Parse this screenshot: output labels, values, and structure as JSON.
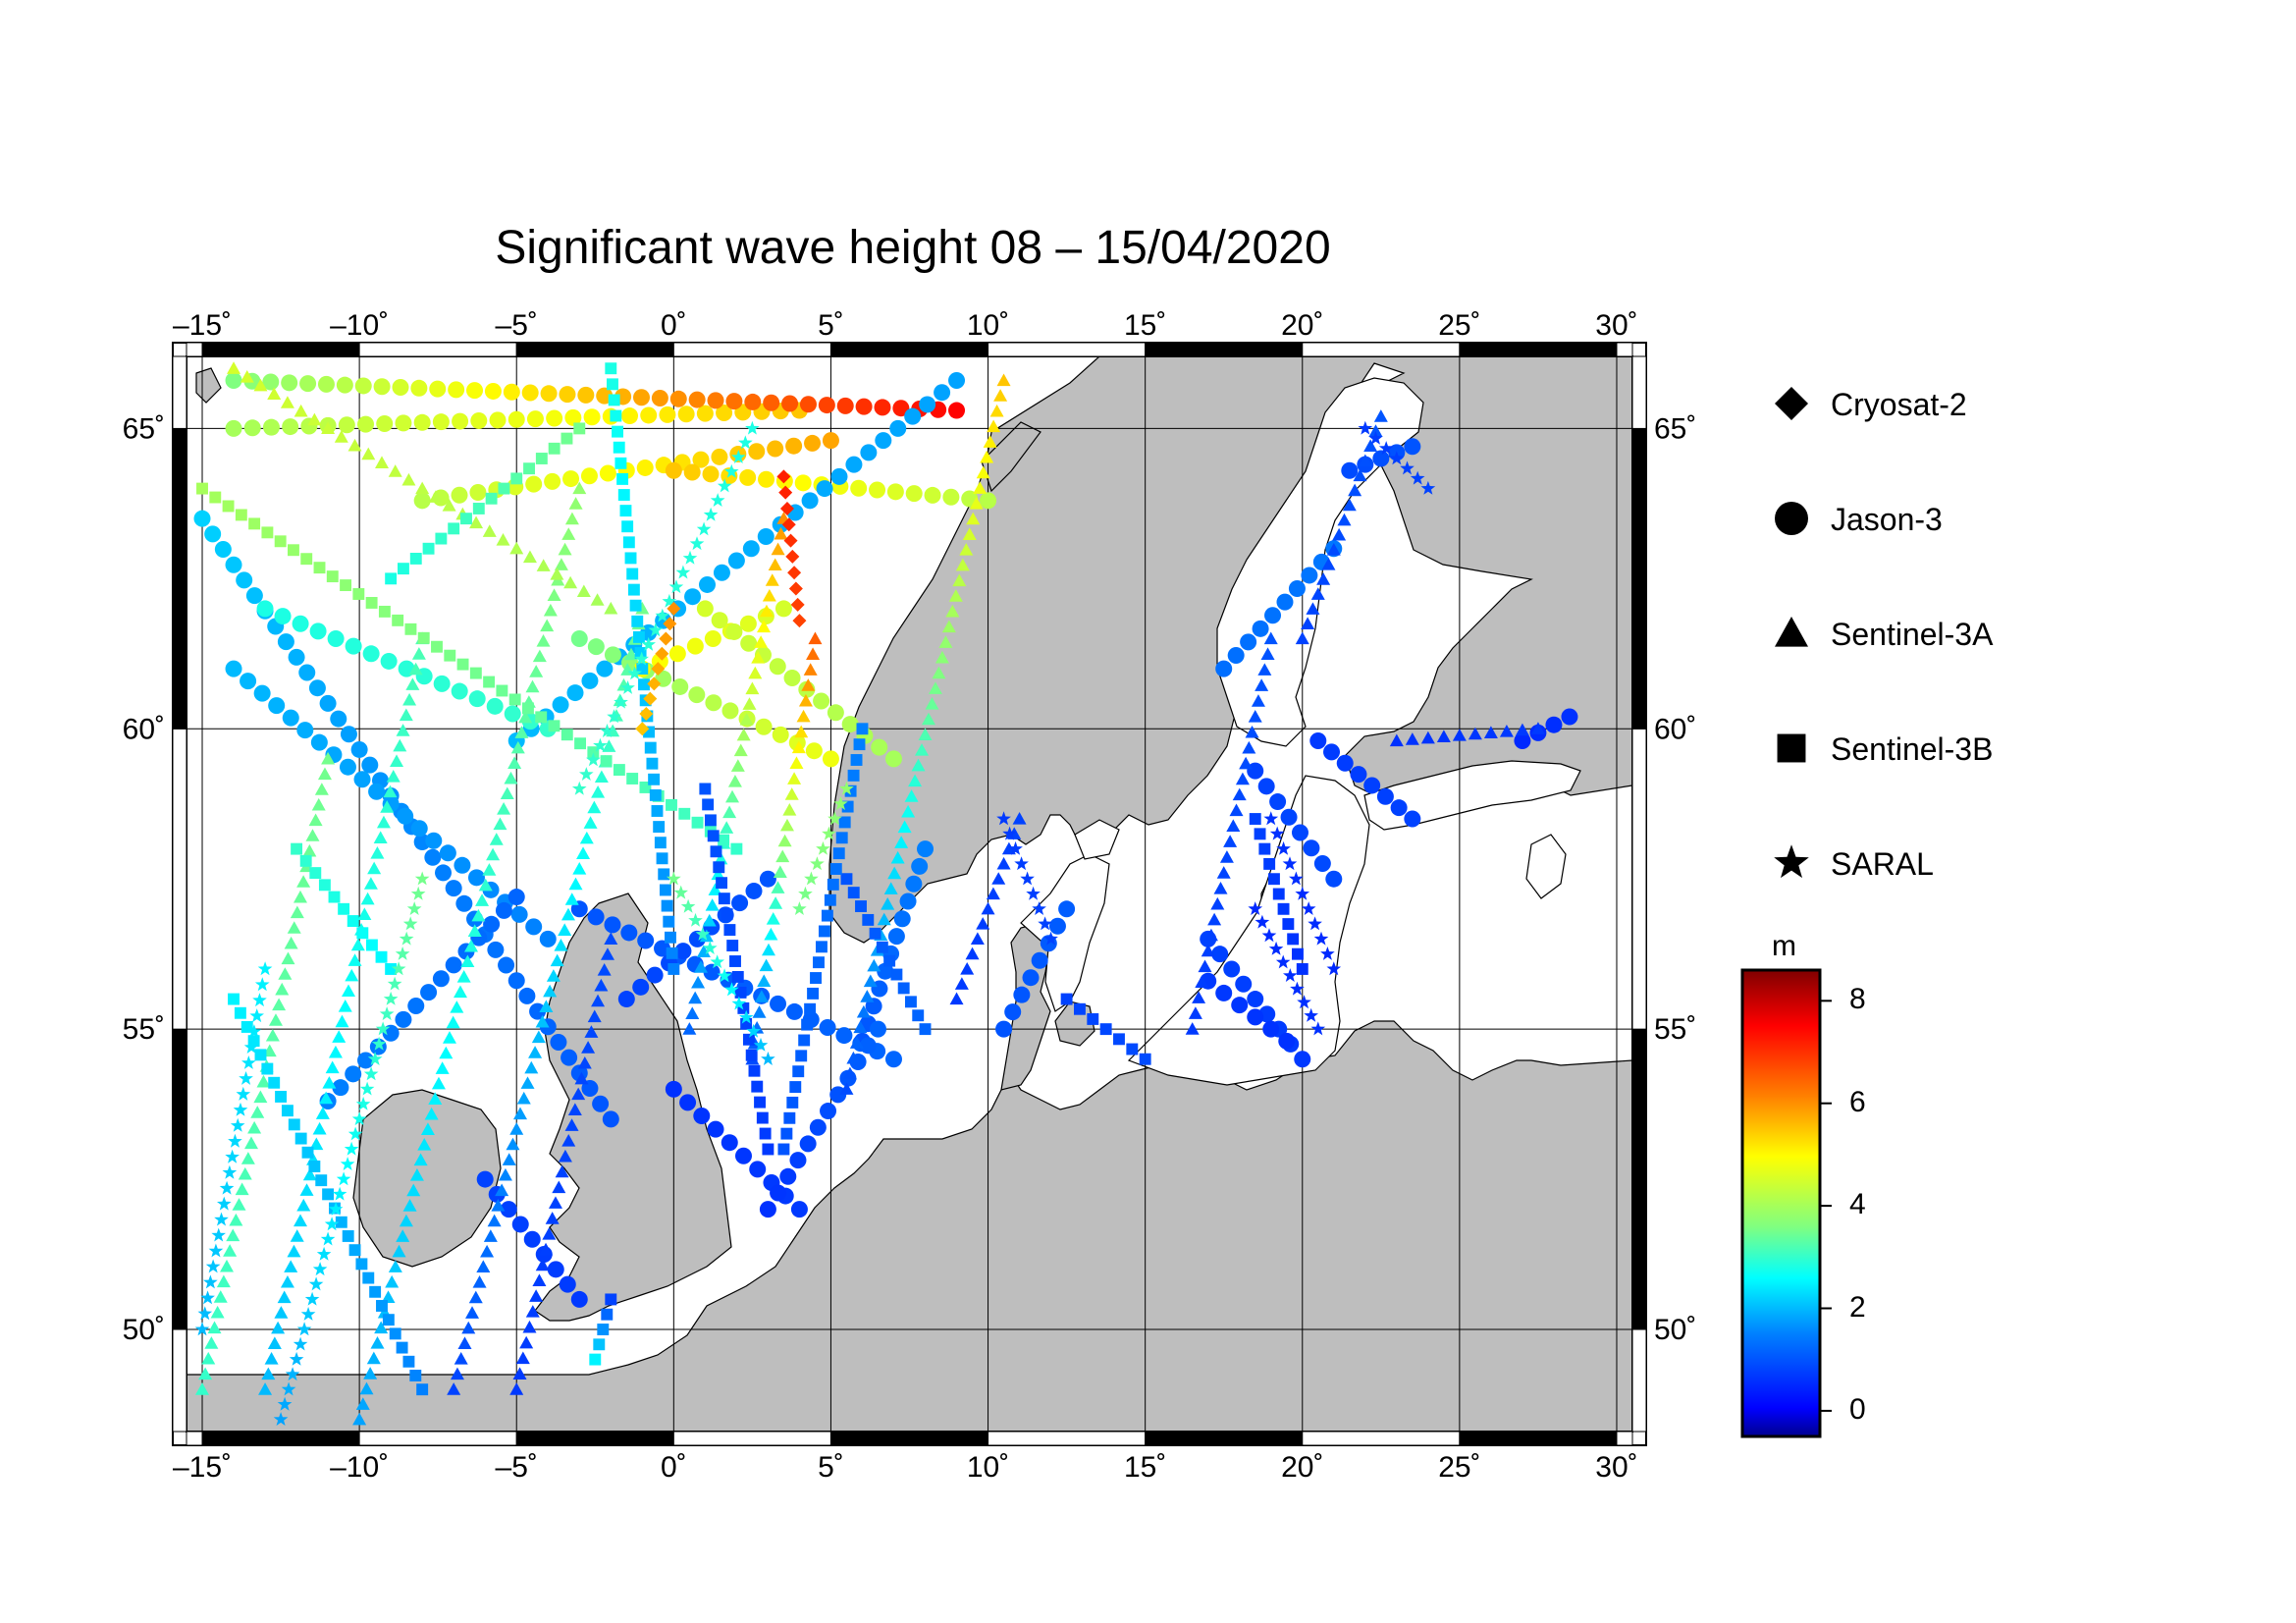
{
  "title": "Significant wave height 08 – 15/04/2020",
  "map": {
    "lon_range": [
      -15.5,
      30.5
    ],
    "lat_range": [
      48.3,
      66.2
    ],
    "lon_ticks": [
      "–15˚",
      "–10˚",
      "–5˚",
      "0˚",
      "5˚",
      "10˚",
      "15˚",
      "20˚",
      "25˚",
      "30˚"
    ],
    "lon_tick_values": [
      -15,
      -10,
      -5,
      0,
      5,
      10,
      15,
      20,
      25,
      30
    ],
    "lat_ticks": [
      "50˚",
      "55˚",
      "60˚",
      "65˚"
    ],
    "lat_tick_values": [
      50,
      55,
      60,
      65
    ],
    "land_color": "#bebebe",
    "sea_color": "#ffffff"
  },
  "legend": {
    "satellites": [
      {
        "name": "Cryosat-2",
        "symbol": "diamond"
      },
      {
        "name": "Jason-3",
        "symbol": "circle"
      },
      {
        "name": "Sentinel-3A",
        "symbol": "triangle"
      },
      {
        "name": "Sentinel-3B",
        "symbol": "square"
      },
      {
        "name": "SARAL",
        "symbol": "star"
      }
    ]
  },
  "colorbar": {
    "unit": "m",
    "range": [
      -0.5,
      8.6
    ],
    "ticks": [
      "8",
      "6",
      "4",
      "2",
      "0"
    ],
    "tick_values": [
      8,
      6,
      4,
      2,
      0
    ],
    "colors": [
      "#00008f",
      "#0000ff",
      "#0080ff",
      "#00ffff",
      "#80ff80",
      "#ffff00",
      "#ff8000",
      "#ff0000",
      "#800000"
    ]
  },
  "chart_data": {
    "type": "scatter",
    "title": "Significant wave height 08 – 15/04/2020",
    "xlabel": "",
    "ylabel": "",
    "x_range": [
      -15.5,
      30.5
    ],
    "y_range": [
      48.3,
      66.2
    ],
    "tracks": [
      {
        "sat": "Jason-3",
        "from": [
          -15,
          63.5
        ],
        "to": [
          -2,
          53.5
        ],
        "hs": [
          2.2,
          1.0
        ]
      },
      {
        "sat": "Jason-3",
        "from": [
          -14,
          61.0
        ],
        "to": [
          -4,
          56.5
        ],
        "hs": [
          2.0,
          1.5
        ]
      },
      {
        "sat": "Jason-3",
        "from": [
          -11,
          53.8
        ],
        "to": [
          -5,
          57.2
        ],
        "hs": [
          1.5,
          1.2
        ]
      },
      {
        "sat": "Jason-3",
        "from": [
          -14,
          65.0
        ],
        "to": [
          4,
          65.3
        ],
        "hs": [
          4.0,
          5.5
        ]
      },
      {
        "sat": "Jason-3",
        "from": [
          -14,
          65.8
        ],
        "to": [
          9,
          65.3
        ],
        "hs": [
          3.6,
          7.5
        ]
      },
      {
        "sat": "Jason-3",
        "from": [
          -8,
          63.8
        ],
        "to": [
          5,
          64.8
        ],
        "hs": [
          4.2,
          5.8
        ]
      },
      {
        "sat": "Jason-3",
        "from": [
          0,
          64.3
        ],
        "to": [
          10,
          63.8
        ],
        "hs": [
          5.5,
          4.2
        ]
      },
      {
        "sat": "Jason-3",
        "from": [
          -5,
          59.8
        ],
        "to": [
          9,
          65.8
        ],
        "hs": [
          2.0,
          1.8
        ]
      },
      {
        "sat": "Jason-3",
        "from": [
          -13,
          62.0
        ],
        "to": [
          -4,
          60.0
        ],
        "hs": [
          2.8,
          3.0
        ]
      },
      {
        "sat": "Jason-3",
        "from": [
          -3,
          61.5
        ],
        "to": [
          5,
          59.5
        ],
        "hs": [
          3.5,
          4.8
        ]
      },
      {
        "sat": "Jason-3",
        "from": [
          -1,
          61.0
        ],
        "to": [
          3.5,
          62.0
        ],
        "hs": [
          5.0,
          4.5
        ]
      },
      {
        "sat": "Jason-3",
        "from": [
          1,
          62.0
        ],
        "to": [
          7,
          59.5
        ],
        "hs": [
          4.5,
          4.0
        ]
      },
      {
        "sat": "Jason-3",
        "from": [
          -3,
          57.0
        ],
        "to": [
          7,
          54.5
        ],
        "hs": [
          1.0,
          1.2
        ]
      },
      {
        "sat": "Jason-3",
        "from": [
          -1.5,
          55.5
        ],
        "to": [
          3,
          57.5
        ],
        "hs": [
          0.8,
          1.0
        ]
      },
      {
        "sat": "Jason-3",
        "from": [
          0,
          54.0
        ],
        "to": [
          4,
          52.0
        ],
        "hs": [
          0.6,
          0.7
        ]
      },
      {
        "sat": "Jason-3",
        "from": [
          6,
          54.8
        ],
        "to": [
          8,
          58.0
        ],
        "hs": [
          1.0,
          1.5
        ]
      },
      {
        "sat": "Jason-3",
        "from": [
          3,
          52.0
        ],
        "to": [
          6.5,
          55.0
        ],
        "hs": [
          0.6,
          1.2
        ]
      },
      {
        "sat": "Jason-3",
        "from": [
          10.5,
          55.0
        ],
        "to": [
          12.5,
          57.0
        ],
        "hs": [
          1.0,
          1.1
        ]
      },
      {
        "sat": "Jason-3",
        "from": [
          17,
          56.5
        ],
        "to": [
          20,
          54.5
        ],
        "hs": [
          0.8,
          0.7
        ]
      },
      {
        "sat": "Jason-3",
        "from": [
          17,
          55.8
        ],
        "to": [
          19.5,
          54.8
        ],
        "hs": [
          0.7,
          0.6
        ]
      },
      {
        "sat": "Jason-3",
        "from": [
          18.5,
          59.3
        ],
        "to": [
          21,
          57.5
        ],
        "hs": [
          0.8,
          0.9
        ]
      },
      {
        "sat": "Jason-3",
        "from": [
          20.5,
          59.8
        ],
        "to": [
          23.5,
          58.5
        ],
        "hs": [
          0.7,
          0.8
        ]
      },
      {
        "sat": "Jason-3",
        "from": [
          27,
          59.8
        ],
        "to": [
          28.5,
          60.2
        ],
        "hs": [
          0.5,
          0.6
        ]
      },
      {
        "sat": "Jason-3",
        "from": [
          17.5,
          61.0
        ],
        "to": [
          21,
          63.0
        ],
        "hs": [
          1.3,
          1.4
        ]
      },
      {
        "sat": "Jason-3",
        "from": [
          21.5,
          64.3
        ],
        "to": [
          23.5,
          64.7
        ],
        "hs": [
          0.9,
          1.0
        ]
      },
      {
        "sat": "Jason-3",
        "from": [
          -6,
          52.5
        ],
        "to": [
          -3,
          50.5
        ],
        "hs": [
          0.8,
          0.7
        ]
      },
      {
        "sat": "Sentinel-3A",
        "from": [
          -15,
          49.0
        ],
        "to": [
          -11,
          59.5
        ],
        "hs": [
          3.0,
          3.5
        ]
      },
      {
        "sat": "Sentinel-3A",
        "from": [
          -13,
          49.0
        ],
        "to": [
          -8,
          61.5
        ],
        "hs": [
          2.0,
          3.2
        ]
      },
      {
        "sat": "Sentinel-3A",
        "from": [
          -10,
          48.5
        ],
        "to": [
          -3,
          64.0
        ],
        "hs": [
          1.8,
          3.8
        ]
      },
      {
        "sat": "Sentinel-3A",
        "from": [
          -7,
          49.0
        ],
        "to": [
          -1,
          62.0
        ],
        "hs": [
          0.8,
          3.5
        ]
      },
      {
        "sat": "Sentinel-3A",
        "from": [
          -5,
          49.0
        ],
        "to": [
          -2,
          56.5
        ],
        "hs": [
          0.7,
          0.9
        ]
      },
      {
        "sat": "Sentinel-3A",
        "from": [
          0.5,
          55.0
        ],
        "to": [
          3.5,
          63.5
        ],
        "hs": [
          1.2,
          6.0
        ]
      },
      {
        "sat": "Sentinel-3A",
        "from": [
          2.5,
          54.5
        ],
        "to": [
          4.5,
          61.5
        ],
        "hs": [
          0.9,
          6.5
        ]
      },
      {
        "sat": "Sentinel-3A",
        "from": [
          5.5,
          54.0
        ],
        "to": [
          10.5,
          65.8
        ],
        "hs": [
          0.9,
          5.5
        ]
      },
      {
        "sat": "Sentinel-3A",
        "from": [
          9,
          55.5
        ],
        "to": [
          11,
          58.5
        ],
        "hs": [
          0.7,
          0.8
        ]
      },
      {
        "sat": "Sentinel-3A",
        "from": [
          16.5,
          55.0
        ],
        "to": [
          19,
          61.5
        ],
        "hs": [
          0.7,
          1.0
        ]
      },
      {
        "sat": "Sentinel-3A",
        "from": [
          20,
          61.5
        ],
        "to": [
          22.5,
          65.2
        ],
        "hs": [
          0.8,
          1.0
        ]
      },
      {
        "sat": "Sentinel-3A",
        "from": [
          23,
          59.8
        ],
        "to": [
          27.5,
          60.0
        ],
        "hs": [
          0.6,
          0.7
        ]
      },
      {
        "sat": "Sentinel-3A",
        "from": [
          -14,
          66.0
        ],
        "to": [
          -2,
          62.0
        ],
        "hs": [
          4.5,
          4.0
        ]
      },
      {
        "sat": "Sentinel-3B",
        "from": [
          -14,
          55.5
        ],
        "to": [
          -8,
          49.0
        ],
        "hs": [
          2.5,
          1.5
        ]
      },
      {
        "sat": "Sentinel-3B",
        "from": [
          -12,
          58.0
        ],
        "to": [
          -9,
          56.0
        ],
        "hs": [
          3.0,
          2.5
        ]
      },
      {
        "sat": "Sentinel-3B",
        "from": [
          -15,
          64.0
        ],
        "to": [
          2,
          58.0
        ],
        "hs": [
          4.0,
          3.0
        ]
      },
      {
        "sat": "Sentinel-3B",
        "from": [
          -2,
          66.0
        ],
        "to": [
          0,
          56.0
        ],
        "hs": [
          2.8,
          1.5
        ]
      },
      {
        "sat": "Sentinel-3B",
        "from": [
          1,
          59.0
        ],
        "to": [
          3,
          53.0
        ],
        "hs": [
          1.0,
          0.7
        ]
      },
      {
        "sat": "Sentinel-3B",
        "from": [
          5.5,
          57.5
        ],
        "to": [
          8,
          55.0
        ],
        "hs": [
          1.0,
          1.2
        ]
      },
      {
        "sat": "Sentinel-3B",
        "from": [
          6,
          60.0
        ],
        "to": [
          3.5,
          53.0
        ],
        "hs": [
          1.5,
          1.0
        ]
      },
      {
        "sat": "Sentinel-3B",
        "from": [
          12.5,
          55.5
        ],
        "to": [
          15,
          54.5
        ],
        "hs": [
          0.8,
          0.9
        ]
      },
      {
        "sat": "Sentinel-3B",
        "from": [
          20,
          56.0
        ],
        "to": [
          18.5,
          58.5
        ],
        "hs": [
          0.6,
          0.8
        ]
      },
      {
        "sat": "Sentinel-3B",
        "from": [
          -2,
          50.5
        ],
        "to": [
          -2.5,
          49.5
        ],
        "hs": [
          0.8,
          2.5
        ]
      },
      {
        "sat": "Sentinel-3B",
        "from": [
          -9,
          62.5
        ],
        "to": [
          -3,
          65.0
        ],
        "hs": [
          2.8,
          3.5
        ]
      },
      {
        "sat": "SARAL",
        "from": [
          -15,
          50.0
        ],
        "to": [
          -13,
          56.0
        ],
        "hs": [
          2.0,
          2.5
        ]
      },
      {
        "sat": "SARAL",
        "from": [
          -12.5,
          48.5
        ],
        "to": [
          -8,
          57.5
        ],
        "hs": [
          1.8,
          3.5
        ]
      },
      {
        "sat": "SARAL",
        "from": [
          -3,
          59.0
        ],
        "to": [
          2.5,
          65.0
        ],
        "hs": [
          3.0,
          2.8
        ]
      },
      {
        "sat": "SARAL",
        "from": [
          0,
          57.5
        ],
        "to": [
          3,
          54.5
        ],
        "hs": [
          3.5,
          2.0
        ]
      },
      {
        "sat": "SARAL",
        "from": [
          4,
          57.0
        ],
        "to": [
          5.5,
          59.0
        ],
        "hs": [
          3.5,
          3.8
        ]
      },
      {
        "sat": "SARAL",
        "from": [
          10.5,
          58.5
        ],
        "to": [
          12,
          56.5
        ],
        "hs": [
          0.7,
          0.8
        ]
      },
      {
        "sat": "SARAL",
        "from": [
          18.5,
          57.0
        ],
        "to": [
          20.5,
          55.0
        ],
        "hs": [
          0.5,
          0.6
        ]
      },
      {
        "sat": "SARAL",
        "from": [
          19,
          58.5
        ],
        "to": [
          21,
          56.0
        ],
        "hs": [
          0.6,
          0.5
        ]
      },
      {
        "sat": "SARAL",
        "from": [
          22,
          65.0
        ],
        "to": [
          24,
          64.0
        ],
        "hs": [
          0.7,
          0.8
        ]
      },
      {
        "sat": "Cryosat-2",
        "from": [
          3.5,
          64.2
        ],
        "to": [
          4,
          61.8
        ],
        "hs": [
          7.2,
          6.8
        ]
      },
      {
        "sat": "Cryosat-2",
        "from": [
          -1,
          60.0
        ],
        "to": [
          0,
          62.0
        ],
        "hs": [
          5.5,
          6.0
        ]
      }
    ]
  }
}
